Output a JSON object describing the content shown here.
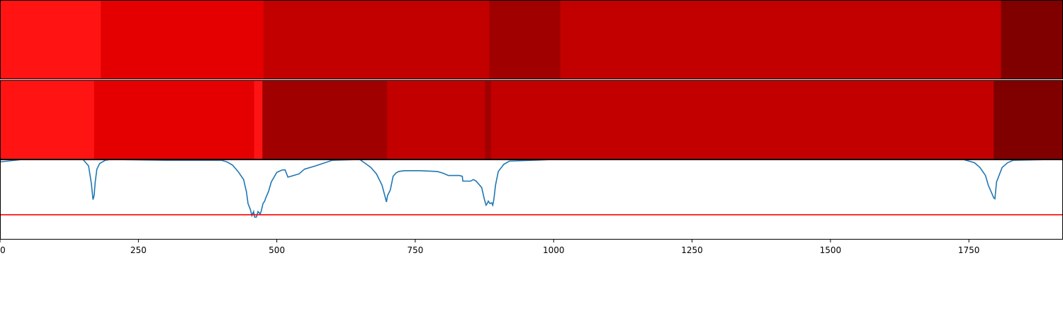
{
  "chart_data": {
    "type": "heatmap",
    "x_range": [
      0,
      1920
    ],
    "x_ticks": [
      "0",
      "250",
      "500",
      "750",
      "1000",
      "1250",
      "1500",
      "1750"
    ],
    "x_tick_values": [
      0,
      250,
      500,
      750,
      1000,
      1250,
      1500,
      1750
    ],
    "strips": [
      {
        "segments": [
          {
            "start": 0,
            "end": 182,
            "color": "#ff1313"
          },
          {
            "start": 182,
            "end": 476,
            "color": "#e40000"
          },
          {
            "start": 476,
            "end": 884,
            "color": "#c20000"
          },
          {
            "start": 884,
            "end": 1012,
            "color": "#a00000"
          },
          {
            "start": 1012,
            "end": 1808,
            "color": "#c20000"
          },
          {
            "start": 1808,
            "end": 1920,
            "color": "#800000"
          }
        ]
      },
      {
        "segments": [
          {
            "start": 0,
            "end": 170,
            "color": "#ff1313"
          },
          {
            "start": 170,
            "end": 459,
            "color": "#e40000"
          },
          {
            "start": 459,
            "end": 474,
            "color": "#ff1313"
          },
          {
            "start": 474,
            "end": 699,
            "color": "#a00000"
          },
          {
            "start": 699,
            "end": 876,
            "color": "#c20000"
          },
          {
            "start": 876,
            "end": 887,
            "color": "#a00000"
          },
          {
            "start": 887,
            "end": 1795,
            "color": "#c20000"
          },
          {
            "start": 1795,
            "end": 1920,
            "color": "#800000"
          }
        ]
      }
    ],
    "line_panel": {
      "y_range": [
        0,
        1
      ],
      "threshold": 0.31,
      "threshold_color": "#ff0000",
      "line_color": "#1f77b4",
      "series": {
        "x": [
          0,
          40,
          90,
          150,
          160,
          165,
          168,
          170,
          172,
          175,
          180,
          190,
          200,
          300,
          400,
          410,
          420,
          430,
          440,
          445,
          448,
          452,
          455,
          458,
          460,
          463,
          466,
          470,
          472,
          475,
          478,
          480,
          485,
          490,
          500,
          510,
          515,
          520,
          530,
          540,
          550,
          570,
          600,
          650,
          660,
          670,
          680,
          690,
          695,
          698,
          700,
          705,
          710,
          715,
          720,
          730,
          760,
          790,
          800,
          810,
          830,
          835,
          836,
          850,
          855,
          860,
          870,
          875,
          878,
          880,
          882,
          885,
          888,
          890,
          892,
          895,
          900,
          910,
          920,
          1000,
          1500,
          1740,
          1760,
          1770,
          1780,
          1785,
          1790,
          1795,
          1797,
          1800,
          1810,
          1820,
          1830,
          1900,
          1920
        ],
        "y": [
          0.97,
          1.0,
          1.0,
          1.0,
          0.92,
          0.7,
          0.5,
          0.55,
          0.72,
          0.88,
          0.95,
          0.99,
          1.0,
          0.99,
          0.99,
          0.97,
          0.93,
          0.85,
          0.75,
          0.6,
          0.45,
          0.38,
          0.3,
          0.35,
          0.28,
          0.28,
          0.35,
          0.32,
          0.36,
          0.45,
          0.48,
          0.52,
          0.6,
          0.72,
          0.84,
          0.87,
          0.87,
          0.78,
          0.8,
          0.82,
          0.88,
          0.92,
          0.99,
          1.0,
          0.95,
          0.9,
          0.82,
          0.68,
          0.55,
          0.47,
          0.55,
          0.62,
          0.79,
          0.83,
          0.85,
          0.86,
          0.86,
          0.85,
          0.83,
          0.8,
          0.8,
          0.79,
          0.73,
          0.73,
          0.75,
          0.73,
          0.65,
          0.5,
          0.43,
          0.45,
          0.48,
          0.45,
          0.46,
          0.43,
          0.5,
          0.68,
          0.85,
          0.94,
          0.98,
          1.0,
          1.0,
          1.0,
          0.96,
          0.9,
          0.8,
          0.68,
          0.6,
          0.52,
          0.51,
          0.72,
          0.9,
          0.96,
          0.99,
          1.0,
          1.0
        ]
      }
    }
  }
}
